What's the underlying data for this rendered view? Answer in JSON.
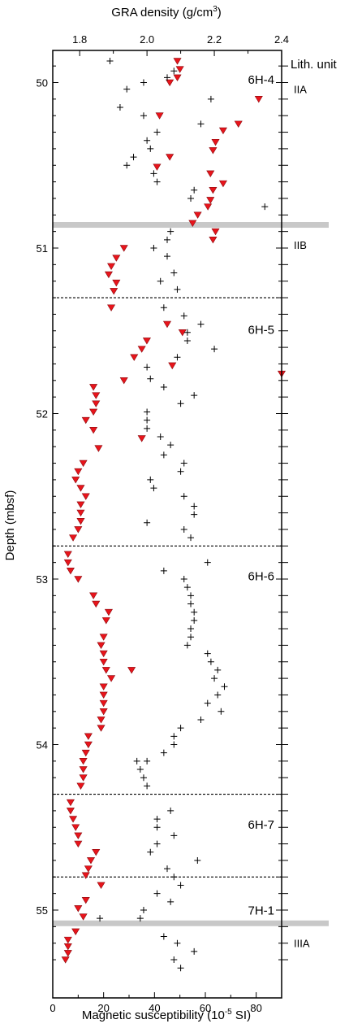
{
  "chart_data": {
    "type": "scatter",
    "ylabel": "Depth (mbsf)",
    "xlabel_bottom": "Magnetic susceptibility (10⁻⁵ SI)",
    "xlabel_top": "GRA density (g/cm³)",
    "y_reversed": true,
    "ylim": [
      49.81,
      55.33
    ],
    "xlim_bottom": [
      0,
      90
    ],
    "xlim_top": [
      1.72,
      2.4
    ],
    "y_ticks": [
      50,
      51,
      52,
      53,
      54,
      55
    ],
    "x_ticks_bottom": [
      0,
      20,
      40,
      60,
      80
    ],
    "x_ticks_top": [
      "1.8",
      "2.0",
      "2.2",
      "2.4"
    ],
    "lith_unit_header": "Lith. unit",
    "lith_units": [
      {
        "label": "IIA",
        "depth": 50.04
      },
      {
        "label": "IIB",
        "depth": 50.98
      },
      {
        "label": "IIIA",
        "depth": 55.2
      }
    ],
    "unit_boundaries": [
      50.86,
      55.08
    ],
    "sections": [
      {
        "label": "6H-4",
        "label_depth": 49.9
      },
      {
        "label": "6H-5",
        "label_depth": 51.41
      },
      {
        "label": "6H-6",
        "label_depth": 52.9
      },
      {
        "label": "6H-7",
        "label_depth": 54.4
      },
      {
        "label": "7H-1",
        "label_depth": 54.92
      }
    ],
    "section_boundaries": [
      51.3,
      52.8,
      54.3,
      54.8
    ],
    "series": [
      {
        "name": "",
        "marker": "triangle-down",
        "color": "#e8141b",
        "axis": "bottom",
        "points": [
          [
            49,
            49.87
          ],
          [
            50,
            49.92
          ],
          [
            49,
            49.97
          ],
          [
            46,
            50.0
          ],
          [
            42,
            50.2
          ],
          [
            81,
            50.1
          ],
          [
            73,
            50.25
          ],
          [
            67,
            50.29
          ],
          [
            64,
            50.36
          ],
          [
            63,
            50.41
          ],
          [
            46,
            50.45
          ],
          [
            41,
            50.51
          ],
          [
            62,
            50.55
          ],
          [
            67,
            50.61
          ],
          [
            63,
            50.65
          ],
          [
            62,
            50.71
          ],
          [
            61,
            50.75
          ],
          [
            57,
            50.8
          ],
          [
            55,
            50.85
          ],
          [
            64,
            50.9
          ],
          [
            63,
            50.95
          ],
          [
            28,
            51.0
          ],
          [
            25,
            51.06
          ],
          [
            23,
            51.11
          ],
          [
            22,
            51.16
          ],
          [
            25,
            51.21
          ],
          [
            24,
            51.26
          ],
          [
            23,
            51.36
          ],
          [
            45,
            51.46
          ],
          [
            51,
            51.51
          ],
          [
            37,
            51.56
          ],
          [
            35,
            51.61
          ],
          [
            32,
            51.66
          ],
          [
            47,
            51.71
          ],
          [
            28,
            51.8
          ],
          [
            90,
            51.76
          ],
          [
            16,
            51.84
          ],
          [
            17,
            51.89
          ],
          [
            17,
            51.94
          ],
          [
            16,
            51.99
          ],
          [
            13,
            52.04
          ],
          [
            16,
            52.1
          ],
          [
            35,
            52.15
          ],
          [
            18,
            52.21
          ],
          [
            12,
            52.3
          ],
          [
            10,
            52.35
          ],
          [
            9,
            52.4
          ],
          [
            11,
            52.45
          ],
          [
            13,
            52.5
          ],
          [
            11,
            52.55
          ],
          [
            11,
            52.6
          ],
          [
            11,
            52.65
          ],
          [
            10,
            52.7
          ],
          [
            8,
            52.75
          ],
          [
            6,
            52.85
          ],
          [
            6,
            52.9
          ],
          [
            7,
            52.95
          ],
          [
            10,
            53.0
          ],
          [
            16,
            53.1
          ],
          [
            17,
            53.15
          ],
          [
            22,
            53.2
          ],
          [
            21,
            53.25
          ],
          [
            20,
            53.35
          ],
          [
            19,
            53.4
          ],
          [
            20,
            53.45
          ],
          [
            20,
            53.5
          ],
          [
            21,
            53.55
          ],
          [
            31,
            53.55
          ],
          [
            23,
            53.6
          ],
          [
            20,
            53.65
          ],
          [
            20,
            53.7
          ],
          [
            20,
            53.75
          ],
          [
            20,
            53.8
          ],
          [
            19,
            53.85
          ],
          [
            19,
            53.9
          ],
          [
            14,
            53.95
          ],
          [
            14,
            54.0
          ],
          [
            13,
            54.05
          ],
          [
            12,
            54.1
          ],
          [
            12,
            54.15
          ],
          [
            12,
            54.2
          ],
          [
            11,
            54.25
          ],
          [
            7,
            54.35
          ],
          [
            7,
            54.4
          ],
          [
            8,
            54.45
          ],
          [
            9,
            54.5
          ],
          [
            10,
            54.55
          ],
          [
            10,
            54.6
          ],
          [
            17,
            54.65
          ],
          [
            15,
            54.7
          ],
          [
            14,
            54.75
          ],
          [
            13,
            54.79
          ],
          [
            19,
            54.85
          ],
          [
            13,
            54.94
          ],
          [
            10,
            54.99
          ],
          [
            12,
            55.04
          ],
          [
            9,
            55.13
          ],
          [
            6,
            55.18
          ],
          [
            6,
            55.22
          ],
          [
            6,
            55.26
          ],
          [
            5,
            55.3
          ]
        ]
      },
      {
        "name": "",
        "marker": "plus",
        "color": "#000000",
        "axis": "top",
        "points": [
          [
            1.89,
            49.87
          ],
          [
            2.08,
            49.93
          ],
          [
            2.06,
            49.97
          ],
          [
            1.99,
            50.0
          ],
          [
            1.94,
            50.04
          ],
          [
            2.19,
            50.1
          ],
          [
            1.92,
            50.15
          ],
          [
            1.99,
            50.2
          ],
          [
            2.16,
            50.25
          ],
          [
            2.03,
            50.3
          ],
          [
            2.0,
            50.35
          ],
          [
            2.01,
            50.4
          ],
          [
            1.96,
            50.45
          ],
          [
            1.94,
            50.5
          ],
          [
            2.02,
            50.55
          ],
          [
            2.03,
            50.6
          ],
          [
            2.14,
            50.65
          ],
          [
            2.13,
            50.7
          ],
          [
            2.35,
            50.75
          ],
          [
            2.07,
            50.9
          ],
          [
            2.06,
            50.95
          ],
          [
            2.02,
            51.0
          ],
          [
            2.06,
            51.05
          ],
          [
            2.08,
            51.15
          ],
          [
            2.04,
            51.2
          ],
          [
            2.09,
            51.25
          ],
          [
            2.05,
            51.36
          ],
          [
            2.11,
            51.41
          ],
          [
            2.16,
            51.46
          ],
          [
            2.12,
            51.51
          ],
          [
            2.12,
            51.56
          ],
          [
            2.2,
            51.61
          ],
          [
            2.09,
            51.66
          ],
          [
            2.0,
            51.72
          ],
          [
            2.01,
            51.79
          ],
          [
            2.05,
            51.84
          ],
          [
            2.14,
            51.89
          ],
          [
            2.1,
            51.94
          ],
          [
            2.0,
            51.99
          ],
          [
            2.0,
            52.04
          ],
          [
            2.0,
            52.09
          ],
          [
            2.04,
            52.14
          ],
          [
            2.07,
            52.19
          ],
          [
            2.05,
            52.25
          ],
          [
            2.11,
            52.3
          ],
          [
            2.1,
            52.35
          ],
          [
            2.01,
            52.4
          ],
          [
            2.02,
            52.45
          ],
          [
            2.11,
            52.5
          ],
          [
            2.14,
            52.56
          ],
          [
            2.14,
            52.61
          ],
          [
            2.0,
            52.66
          ],
          [
            2.11,
            52.7
          ],
          [
            2.13,
            52.75
          ],
          [
            2.18,
            52.9
          ],
          [
            2.05,
            52.95
          ],
          [
            2.11,
            53.0
          ],
          [
            2.12,
            53.05
          ],
          [
            2.13,
            53.1
          ],
          [
            2.13,
            53.15
          ],
          [
            2.14,
            53.2
          ],
          [
            2.14,
            53.25
          ],
          [
            2.13,
            53.3
          ],
          [
            2.13,
            53.35
          ],
          [
            2.12,
            53.4
          ],
          [
            2.18,
            53.45
          ],
          [
            2.19,
            53.5
          ],
          [
            2.21,
            53.55
          ],
          [
            2.2,
            53.6
          ],
          [
            2.23,
            53.65
          ],
          [
            2.21,
            53.7
          ],
          [
            2.18,
            53.75
          ],
          [
            2.22,
            53.8
          ],
          [
            2.16,
            53.85
          ],
          [
            2.1,
            53.9
          ],
          [
            2.08,
            53.95
          ],
          [
            2.08,
            54.0
          ],
          [
            2.05,
            54.05
          ],
          [
            1.97,
            54.1
          ],
          [
            2.0,
            54.1
          ],
          [
            1.98,
            54.15
          ],
          [
            1.99,
            54.2
          ],
          [
            2.0,
            54.25
          ],
          [
            2.07,
            54.4
          ],
          [
            2.03,
            54.45
          ],
          [
            2.03,
            54.5
          ],
          [
            2.08,
            54.55
          ],
          [
            2.03,
            54.6
          ],
          [
            2.01,
            54.65
          ],
          [
            2.15,
            54.7
          ],
          [
            2.06,
            54.75
          ],
          [
            2.08,
            54.8
          ],
          [
            2.1,
            54.85
          ],
          [
            2.03,
            54.9
          ],
          [
            2.07,
            54.95
          ],
          [
            1.99,
            55.0
          ],
          [
            1.98,
            55.05
          ],
          [
            1.86,
            55.05
          ],
          [
            2.05,
            55.16
          ],
          [
            2.09,
            55.2
          ],
          [
            2.14,
            55.25
          ],
          [
            2.08,
            55.3
          ],
          [
            2.1,
            55.35
          ]
        ]
      }
    ]
  }
}
